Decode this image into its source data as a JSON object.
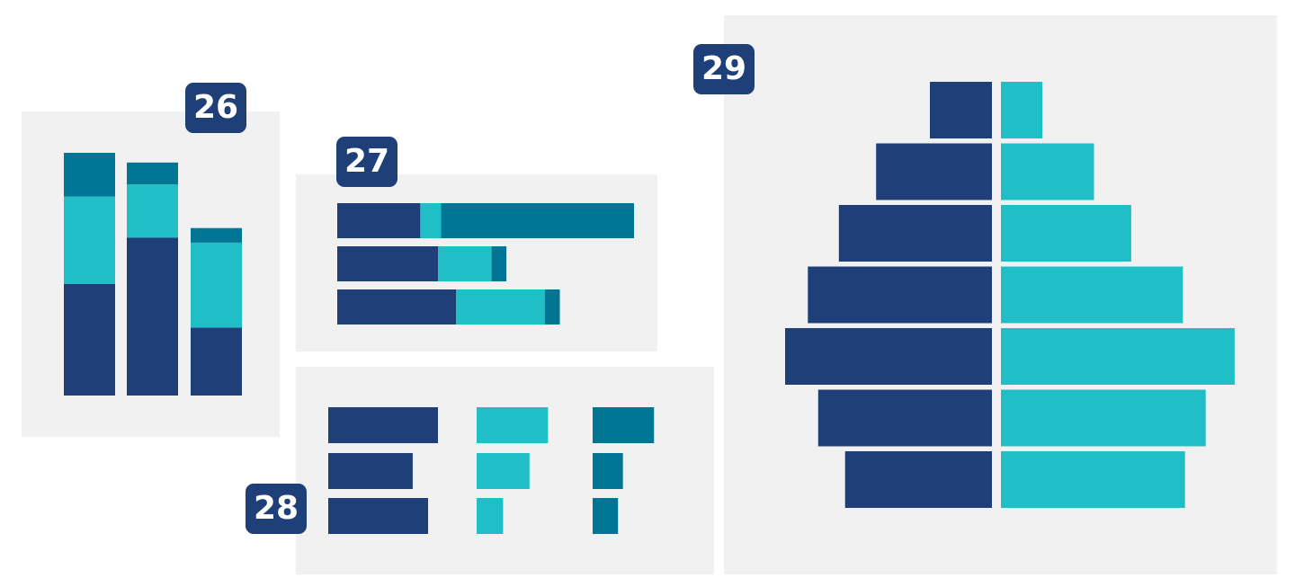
{
  "colors": {
    "dark": "#1f3f78",
    "light": "#20bfc8",
    "mid": "#017594"
  },
  "badges": {
    "b26": "26",
    "b27": "27",
    "b28": "28",
    "b29": "29"
  },
  "chart_data": [
    {
      "id": "26",
      "type": "bar",
      "orientation": "vertical",
      "stacked": true,
      "categories": [
        "",
        "",
        ""
      ],
      "series": [
        {
          "color": "#1f3f78",
          "values": [
            46,
            65,
            28
          ]
        },
        {
          "color": "#20bfc8",
          "values": [
            36,
            22,
            35
          ]
        },
        {
          "color": "#017594",
          "values": [
            18,
            9,
            6
          ]
        }
      ],
      "ylim": [
        0,
        100
      ],
      "grid": false
    },
    {
      "id": "27",
      "type": "bar",
      "orientation": "horizontal",
      "stacked": true,
      "categories": [
        "",
        "",
        ""
      ],
      "series": [
        {
          "color": "#1f3f78",
          "values": [
            28,
            34,
            40
          ]
        },
        {
          "color": "#20bfc8",
          "values": [
            7,
            18,
            30
          ]
        },
        {
          "color": "#017594",
          "values": [
            65,
            5,
            5
          ]
        }
      ],
      "xlim": [
        0,
        100
      ],
      "grid": false
    },
    {
      "id": "28",
      "type": "bar",
      "orientation": "horizontal",
      "small_multiples": true,
      "categories": [
        "",
        "",
        ""
      ],
      "series": [
        {
          "color": "#1f3f78",
          "values": [
            100,
            77,
            91
          ]
        },
        {
          "color": "#20bfc8",
          "values": [
            81,
            60,
            30
          ]
        },
        {
          "color": "#017594",
          "values": [
            75,
            37,
            31
          ]
        }
      ],
      "xlim": [
        0,
        100
      ],
      "grid": false
    },
    {
      "id": "29",
      "type": "bar",
      "orientation": "horizontal",
      "diverging": true,
      "categories": [
        "",
        "",
        "",
        "",
        "",
        "",
        ""
      ],
      "series": [
        {
          "color": "#1f3f78",
          "values": [
            30,
            56,
            74,
            89,
            100,
            84,
            71
          ]
        },
        {
          "color": "#20bfc8",
          "values": [
            20,
            45,
            63,
            88,
            113,
            99,
            89
          ]
        }
      ],
      "xlim": [
        -100,
        113
      ],
      "grid": false
    }
  ]
}
